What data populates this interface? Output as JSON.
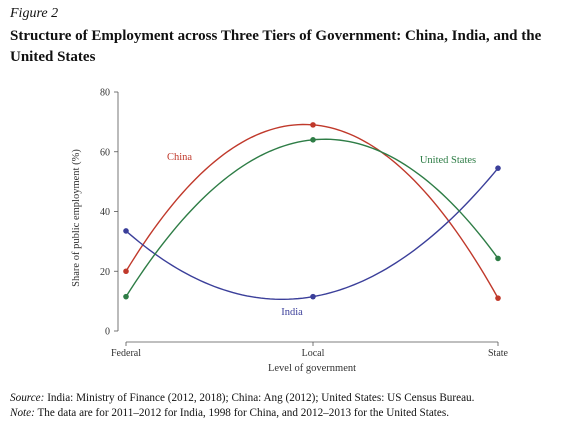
{
  "figure": {
    "label": "Figure 2",
    "title": "Structure of Employment across Three Tiers of Government: China, India, and the United States"
  },
  "chart_data": {
    "type": "line",
    "title": "Structure of Employment across Three Tiers of Government: China, India, and the United States",
    "xlabel": "Level of government",
    "ylabel": "Share of public employment (%)",
    "categories": [
      "Federal",
      "Local",
      "State"
    ],
    "ylim": [
      0,
      80
    ],
    "yticks": [
      0,
      20,
      40,
      60,
      80
    ],
    "grid": false,
    "series": [
      {
        "name": "China",
        "values": [
          20,
          69,
          11
        ],
        "color": "#c0392b"
      },
      {
        "name": "India",
        "values": [
          33.5,
          11.5,
          54.5
        ],
        "color": "#3b3f9a"
      },
      {
        "name": "United States",
        "values": [
          11.5,
          64,
          24.3
        ],
        "color": "#2e7d46"
      }
    ]
  },
  "footnotes": {
    "source_label": "Source:",
    "source_text": " India: Ministry of Finance (2012, 2018); China: Ang (2012); United States: US Census Bureau.",
    "note_label": "Note:",
    "note_text": " The data are for 2011–2012 for India, 1998 for China, and 2012–2013 for the United States."
  }
}
